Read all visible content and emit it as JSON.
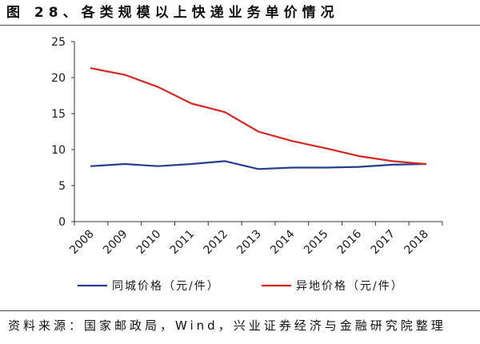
{
  "source": "资料来源：国家邮政局，Wind，兴业证券经济与金融研究院整理",
  "chart_data": {
    "type": "line",
    "title": "图 28、各类规模以上快递业务单价情况",
    "xlabel": "",
    "ylabel": "",
    "categories": [
      "2008",
      "2009",
      "2010",
      "2011",
      "2012",
      "2013",
      "2014",
      "2015",
      "2016",
      "2017",
      "2018"
    ],
    "series": [
      {
        "name": "同城价格（元/件）",
        "color": "#233f8e",
        "values": [
          7.7,
          8.0,
          7.7,
          8.0,
          8.4,
          7.3,
          7.5,
          7.5,
          7.6,
          7.9,
          8.0
        ]
      },
      {
        "name": "异地价格（元/件）",
        "color": "#d7261e",
        "values": [
          21.3,
          20.4,
          18.7,
          16.4,
          15.2,
          12.5,
          11.2,
          10.2,
          9.1,
          8.4,
          8.0
        ]
      }
    ],
    "ylim": [
      0,
      25
    ],
    "yticks": [
      0,
      5,
      10,
      15,
      20,
      25
    ],
    "grid": false,
    "legend_position": "bottom"
  }
}
